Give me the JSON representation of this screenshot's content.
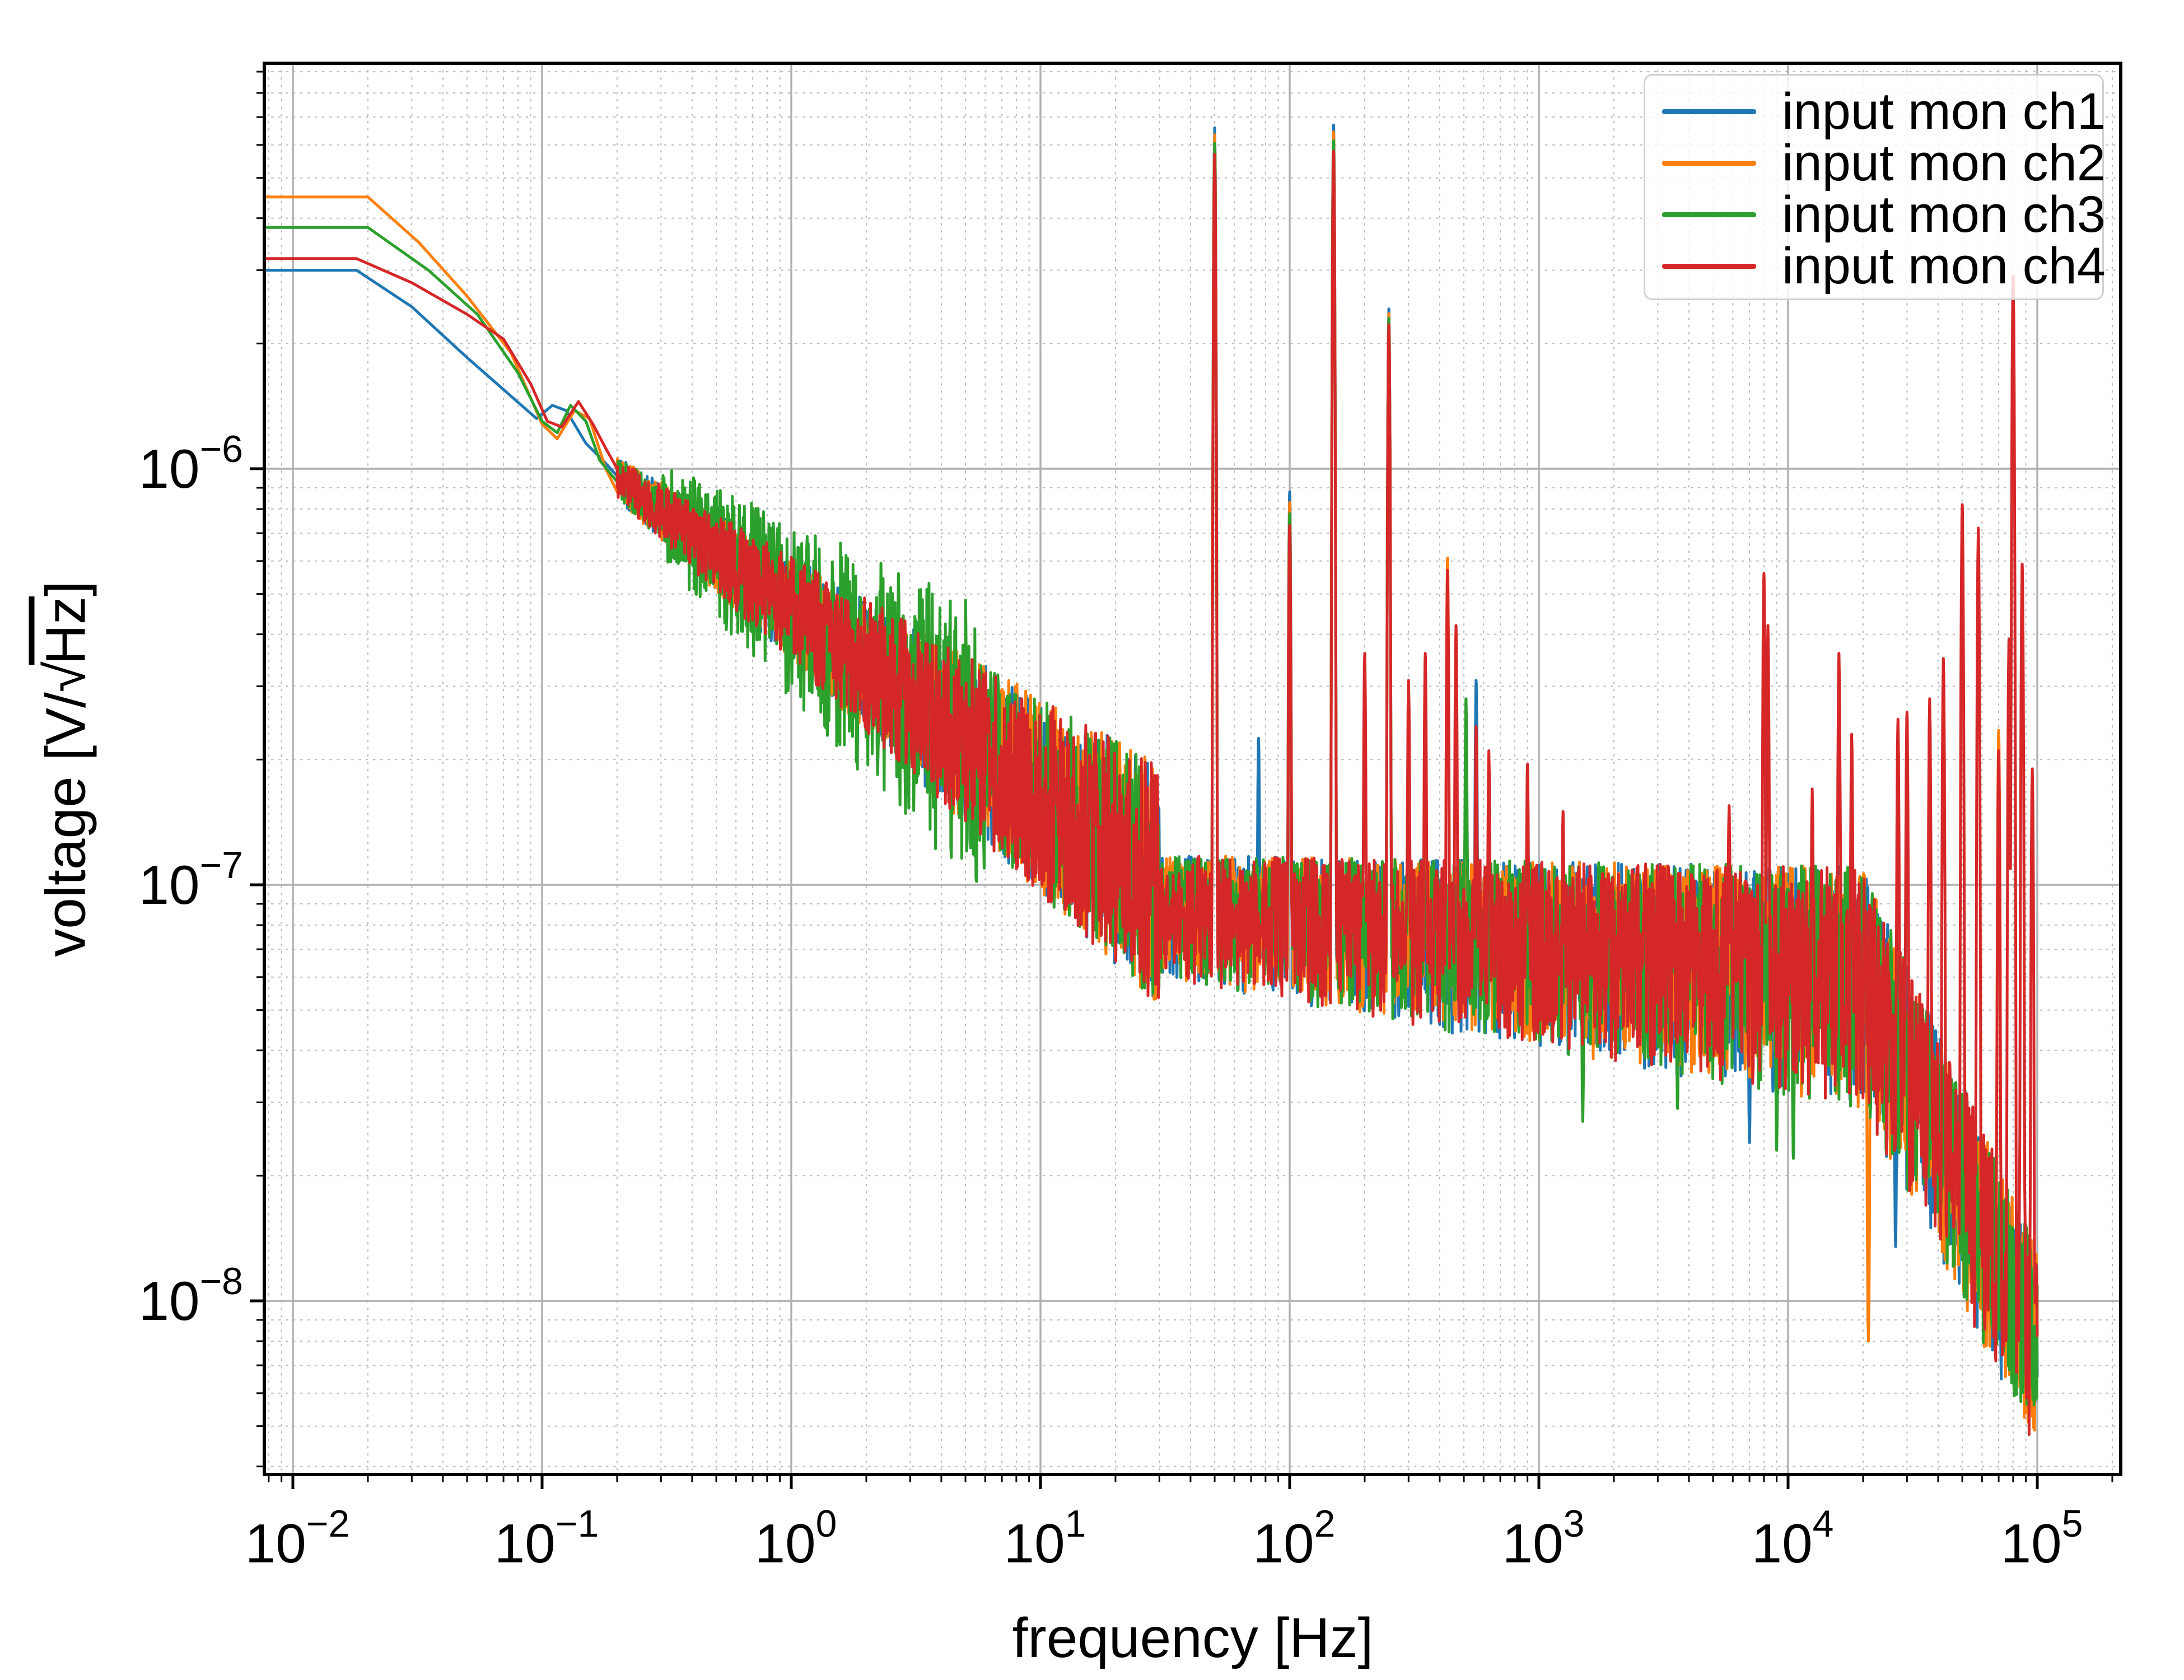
{
  "figure": {
    "background_color": "#ffffff",
    "plot_border_color": "#000000",
    "major_grid_color": "#b0b0b0",
    "minor_grid_color": "#bdbdbd"
  },
  "chart_data": {
    "type": "line",
    "title": "",
    "xlabel": "frequency [Hz]",
    "ylabel": "voltage [V/√Hz]",
    "ylabel_parts": {
      "prefix": "voltage [V/",
      "sqrt_symbol": "√",
      "radicand": "Hz",
      "suffix": "]"
    },
    "xscale": "log",
    "yscale": "log",
    "xlim": [
      0.0077,
      216000
    ],
    "ylim": [
      3.8e-09,
      9.4e-06
    ],
    "x_ticks": [
      {
        "base": "10",
        "exp": "−2",
        "value": -2
      },
      {
        "base": "10",
        "exp": "−1",
        "value": -1
      },
      {
        "base": "10",
        "exp": "0",
        "value": 0
      },
      {
        "base": "10",
        "exp": "1",
        "value": 1
      },
      {
        "base": "10",
        "exp": "2",
        "value": 2
      },
      {
        "base": "10",
        "exp": "3",
        "value": 3
      },
      {
        "base": "10",
        "exp": "4",
        "value": 4
      },
      {
        "base": "10",
        "exp": "5",
        "value": 5
      }
    ],
    "y_ticks": [
      {
        "base": "10",
        "exp": "−6",
        "value": -6
      },
      {
        "base": "10",
        "exp": "−7",
        "value": -7
      },
      {
        "base": "10",
        "exp": "−8",
        "value": -8
      }
    ],
    "grid": {
      "major": true,
      "minor": true,
      "minor_style": "dotted"
    },
    "legend": {
      "position": "upper right",
      "entries": [
        {
          "label": "input mon ch1",
          "color": "#1f77b4"
        },
        {
          "label": "input mon ch2",
          "color": "#ff7f0e"
        },
        {
          "label": "input mon ch3",
          "color": "#2ca02c"
        },
        {
          "label": "input mon ch4",
          "color": "#d62728"
        }
      ]
    },
    "series": [
      {
        "name": "input mon ch1",
        "color": "#1f77b4",
        "low_freq_points": [
          [
            0.0077,
            3e-06
          ],
          [
            0.018,
            3e-06
          ],
          [
            0.03,
            2.45e-06
          ],
          [
            0.05,
            1.85e-06
          ],
          [
            0.07,
            1.55e-06
          ],
          [
            0.095,
            1.32e-06
          ],
          [
            0.11,
            1.42e-06
          ],
          [
            0.125,
            1.38e-06
          ],
          [
            0.15,
            1.15e-06
          ],
          [
            0.175,
            1.05e-06
          ],
          [
            0.2,
            9.6e-07
          ]
        ]
      },
      {
        "name": "input mon ch2",
        "color": "#ff7f0e",
        "low_freq_points": [
          [
            0.0077,
            4.5e-06
          ],
          [
            0.02,
            4.5e-06
          ],
          [
            0.032,
            3.5e-06
          ],
          [
            0.05,
            2.6e-06
          ],
          [
            0.075,
            1.9e-06
          ],
          [
            0.1,
            1.28e-06
          ],
          [
            0.115,
            1.18e-06
          ],
          [
            0.135,
            1.38e-06
          ],
          [
            0.155,
            1.32e-06
          ],
          [
            0.18,
            1e-06
          ],
          [
            0.2,
            8.8e-07
          ]
        ]
      },
      {
        "name": "input mon ch3",
        "color": "#2ca02c",
        "low_freq_points": [
          [
            0.0077,
            3.8e-06
          ],
          [
            0.02,
            3.8e-06
          ],
          [
            0.035,
            3e-06
          ],
          [
            0.055,
            2.35e-06
          ],
          [
            0.08,
            1.7e-06
          ],
          [
            0.1,
            1.3e-06
          ],
          [
            0.115,
            1.22e-06
          ],
          [
            0.13,
            1.42e-06
          ],
          [
            0.15,
            1.3e-06
          ],
          [
            0.17,
            1.05e-06
          ],
          [
            0.2,
            9.3e-07
          ]
        ]
      },
      {
        "name": "input mon ch4",
        "color": "#d62728",
        "low_freq_points": [
          [
            0.0077,
            3.2e-06
          ],
          [
            0.018,
            3.2e-06
          ],
          [
            0.03,
            2.8e-06
          ],
          [
            0.05,
            2.35e-06
          ],
          [
            0.07,
            2.05e-06
          ],
          [
            0.09,
            1.6e-06
          ],
          [
            0.105,
            1.3e-06
          ],
          [
            0.12,
            1.26e-06
          ],
          [
            0.14,
            1.45e-06
          ],
          [
            0.16,
            1.28e-06
          ],
          [
            0.18,
            1.12e-06
          ],
          [
            0.2,
            1e-06
          ]
        ]
      }
    ],
    "noise_band_model": {
      "comment_free": "measured band envelope read from plot",
      "low_region_mid_coeff": 4.6e-07,
      "low_region_exponent": -0.45,
      "flat_band_top": 1.18e-07,
      "flat_band_bottom_at_30Hz": 6e-08,
      "flat_band_bottom_at_10kHz": 3.1e-08,
      "rolloff_corner_hz": 20000,
      "value_at_100kHz_top": 1.4e-08,
      "value_at_100kHz_bottom": 5.5e-09,
      "data_end_hz": 100000
    },
    "spikes": [
      {
        "f": 50,
        "a": [
          6.6e-06,
          6.35e-06,
          6.05e-06,
          5.7e-06
        ]
      },
      {
        "f": 75,
        "a": [
          2.25e-07,
          null,
          null,
          null
        ]
      },
      {
        "f": 100,
        "a": [
          8.8e-07,
          8.3e-07,
          7.8e-07,
          7.3e-07
        ]
      },
      {
        "f": 150,
        "a": [
          6.7e-06,
          6.45e-06,
          6.15e-06,
          5.8e-06
        ]
      },
      {
        "f": 200,
        "a": [
          null,
          null,
          null,
          3.6e-07
        ]
      },
      {
        "f": 250,
        "a": [
          2.42e-06,
          2.36e-06,
          2.3e-06,
          2.22e-06
        ]
      },
      {
        "f": 300,
        "a": [
          null,
          null,
          2.2e-07,
          3.1e-07
        ]
      },
      {
        "f": 350,
        "a": [
          null,
          3e-07,
          null,
          3.6e-07
        ]
      },
      {
        "f": 430,
        "a": [
          null,
          6.1e-07,
          null,
          5.7e-07
        ]
      },
      {
        "f": 465,
        "a": [
          null,
          null,
          null,
          4.2e-07
        ]
      },
      {
        "f": 510,
        "a": [
          null,
          null,
          2.8e-07,
          null
        ]
      },
      {
        "f": 560,
        "a": [
          3.1e-07,
          null,
          null,
          2.4e-07
        ]
      },
      {
        "f": 630,
        "a": [
          null,
          null,
          null,
          2.1e-07
        ]
      },
      {
        "f": 900,
        "a": [
          null,
          null,
          null,
          1.95e-07
        ]
      },
      {
        "f": 1250,
        "a": [
          null,
          null,
          null,
          1.5e-07
        ]
      },
      {
        "f": 5800,
        "a": [
          null,
          null,
          null,
          1.55e-07
        ]
      },
      {
        "f": 8000,
        "a": [
          null,
          null,
          null,
          5.6e-07
        ]
      },
      {
        "f": 8300,
        "a": [
          null,
          null,
          null,
          4.2e-07
        ]
      },
      {
        "f": 12500,
        "a": [
          null,
          null,
          null,
          1.7e-07
        ]
      },
      {
        "f": 16000,
        "a": [
          null,
          null,
          null,
          3.6e-07
        ]
      },
      {
        "f": 18000,
        "a": [
          null,
          null,
          null,
          2.3e-07
        ]
      },
      {
        "f": 27600,
        "a": [
          null,
          null,
          null,
          2.5e-07
        ]
      },
      {
        "f": 30000,
        "a": [
          null,
          null,
          null,
          2.6e-07
        ]
      },
      {
        "f": 37000,
        "a": [
          null,
          null,
          null,
          2.8e-07
        ]
      },
      {
        "f": 42000,
        "a": [
          null,
          null,
          null,
          3.5e-07
        ]
      },
      {
        "f": 50000,
        "a": [
          null,
          null,
          null,
          8.2e-07
        ]
      },
      {
        "f": 58000,
        "a": [
          null,
          null,
          null,
          7.2e-07
        ]
      },
      {
        "f": 70000,
        "a": [
          null,
          2.35e-07,
          null,
          2.1e-07
        ]
      },
      {
        "f": 77000,
        "a": [
          null,
          null,
          null,
          3.9e-07
        ]
      },
      {
        "f": 80000,
        "a": [
          null,
          null,
          null,
          2.9e-06
        ]
      },
      {
        "f": 87000,
        "a": [
          null,
          null,
          null,
          5.9e-07
        ]
      },
      {
        "f": 95500,
        "a": [
          null,
          null,
          null,
          1.9e-07
        ]
      }
    ],
    "dips": [
      {
        "f": 1500,
        "a": [
          null,
          null,
          2.7e-08,
          null
        ]
      },
      {
        "f": 3600,
        "a": [
          null,
          null,
          2.9e-08,
          null
        ]
      },
      {
        "f": 7000,
        "a": [
          2.4e-08,
          null,
          null,
          null
        ]
      },
      {
        "f": 9000,
        "a": [
          null,
          null,
          2.3e-08,
          null
        ]
      },
      {
        "f": 10500,
        "a": [
          null,
          null,
          2.2e-08,
          null
        ]
      },
      {
        "f": 21000,
        "a": [
          null,
          8e-09,
          null,
          null
        ]
      },
      {
        "f": 27000,
        "a": [
          1.35e-08,
          null,
          null,
          null
        ]
      },
      {
        "f": 96000,
        "a": [
          null,
          null,
          5.8e-09,
          null
        ]
      }
    ]
  }
}
